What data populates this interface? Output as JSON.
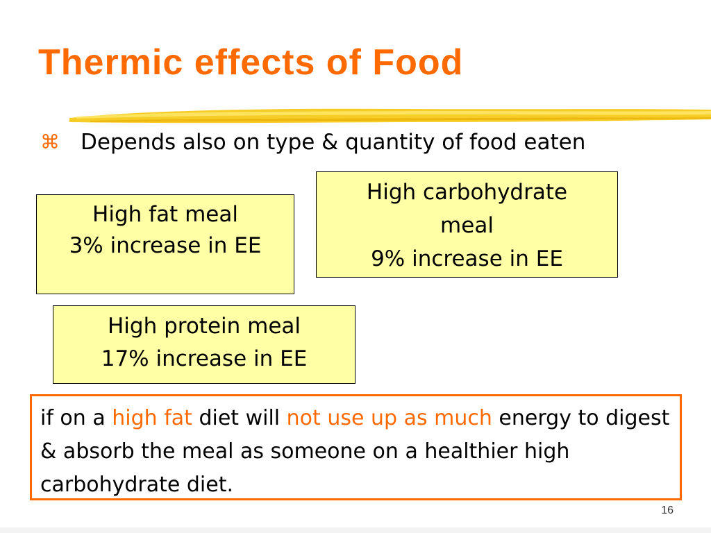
{
  "slide": {
    "title": "Thermic effects of Food",
    "accent_color": "#ff6a00",
    "box_fill_color": "#ffffa6",
    "brush_color": "#f5c400",
    "bullet": {
      "icon": "command-key-icon",
      "symbol": "⌘",
      "text": "Depends also on type & quantity of food eaten"
    },
    "boxes": {
      "fat": {
        "line1": "High fat meal",
        "line2": "3% increase in EE"
      },
      "carb": {
        "line1": "High carbohydrate",
        "line2": "meal",
        "line3": "9% increase in EE"
      },
      "protein": {
        "line1": "High protein meal",
        "line2": "17% increase in EE"
      }
    },
    "note": {
      "part1": "if on a ",
      "highlight1": "high fat",
      "part2": " diet will ",
      "highlight2": "not use up as much",
      "part3": " energy to digest & absorb the meal as someone on a healthier high carbohydrate diet."
    },
    "page_number": "16"
  }
}
